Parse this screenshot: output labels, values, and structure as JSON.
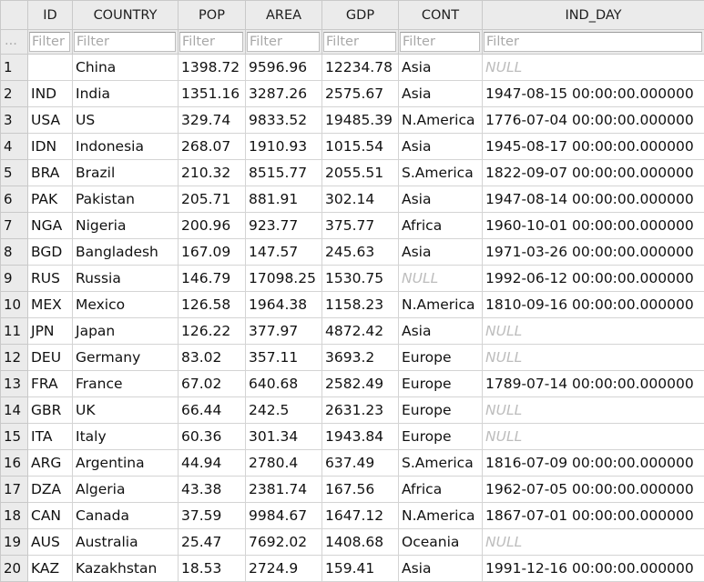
{
  "columns": [
    "ID",
    "COUNTRY",
    "POP",
    "AREA",
    "GDP",
    "CONT",
    "IND_DAY"
  ],
  "filter": {
    "rowid_placeholder": "...",
    "placeholder": "Filter"
  },
  "null_text": "NULL",
  "rows": [
    [
      "1",
      "",
      "China",
      "1398.72",
      "9596.96",
      "12234.78",
      "Asia",
      null
    ],
    [
      "2",
      "IND",
      "India",
      "1351.16",
      "3287.26",
      "2575.67",
      "Asia",
      "1947-08-15 00:00:00.000000"
    ],
    [
      "3",
      "USA",
      "US",
      "329.74",
      "9833.52",
      "19485.39",
      "N.America",
      "1776-07-04 00:00:00.000000"
    ],
    [
      "4",
      "IDN",
      "Indonesia",
      "268.07",
      "1910.93",
      "1015.54",
      "Asia",
      "1945-08-17 00:00:00.000000"
    ],
    [
      "5",
      "BRA",
      "Brazil",
      "210.32",
      "8515.77",
      "2055.51",
      "S.America",
      "1822-09-07 00:00:00.000000"
    ],
    [
      "6",
      "PAK",
      "Pakistan",
      "205.71",
      "881.91",
      "302.14",
      "Asia",
      "1947-08-14 00:00:00.000000"
    ],
    [
      "7",
      "NGA",
      "Nigeria",
      "200.96",
      "923.77",
      "375.77",
      "Africa",
      "1960-10-01 00:00:00.000000"
    ],
    [
      "8",
      "BGD",
      "Bangladesh",
      "167.09",
      "147.57",
      "245.63",
      "Asia",
      "1971-03-26 00:00:00.000000"
    ],
    [
      "9",
      "RUS",
      "Russia",
      "146.79",
      "17098.25",
      "1530.75",
      null,
      "1992-06-12 00:00:00.000000"
    ],
    [
      "10",
      "MEX",
      "Mexico",
      "126.58",
      "1964.38",
      "1158.23",
      "N.America",
      "1810-09-16 00:00:00.000000"
    ],
    [
      "11",
      "JPN",
      "Japan",
      "126.22",
      "377.97",
      "4872.42",
      "Asia",
      null
    ],
    [
      "12",
      "DEU",
      "Germany",
      "83.02",
      "357.11",
      "3693.2",
      "Europe",
      null
    ],
    [
      "13",
      "FRA",
      "France",
      "67.02",
      "640.68",
      "2582.49",
      "Europe",
      "1789-07-14 00:00:00.000000"
    ],
    [
      "14",
      "GBR",
      "UK",
      "66.44",
      "242.5",
      "2631.23",
      "Europe",
      null
    ],
    [
      "15",
      "ITA",
      "Italy",
      "60.36",
      "301.34",
      "1943.84",
      "Europe",
      null
    ],
    [
      "16",
      "ARG",
      "Argentina",
      "44.94",
      "2780.4",
      "637.49",
      "S.America",
      "1816-07-09 00:00:00.000000"
    ],
    [
      "17",
      "DZA",
      "Algeria",
      "43.38",
      "2381.74",
      "167.56",
      "Africa",
      "1962-07-05 00:00:00.000000"
    ],
    [
      "18",
      "CAN",
      "Canada",
      "37.59",
      "9984.67",
      "1647.12",
      "N.America",
      "1867-07-01 00:00:00.000000"
    ],
    [
      "19",
      "AUS",
      "Australia",
      "25.47",
      "7692.02",
      "1408.68",
      "Oceania",
      null
    ],
    [
      "20",
      "KAZ",
      "Kazakhstan",
      "18.53",
      "2724.9",
      "159.41",
      "Asia",
      "1991-12-16 00:00:00.000000"
    ]
  ]
}
